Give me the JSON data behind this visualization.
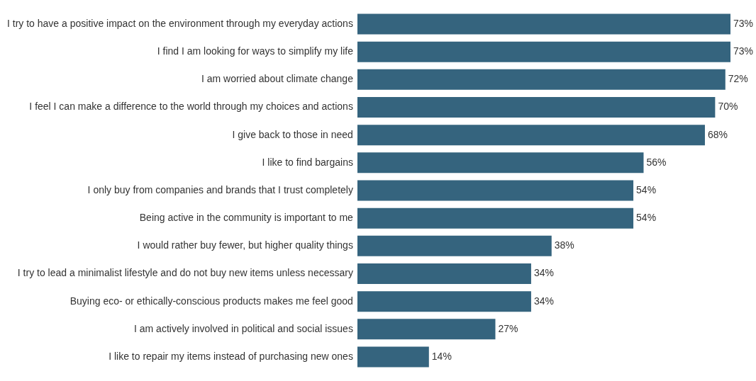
{
  "chart_data": {
    "type": "bar",
    "orientation": "horizontal",
    "categories": [
      "I try to have a positive impact on the environment through my everyday actions",
      "I find I am looking for ways to simplify my life",
      "I am worried about climate change",
      "I feel I can make a difference to the world through my choices and actions",
      "I give back to those in need",
      "I like to find bargains",
      "I only buy from companies and brands that I trust completely",
      "Being active in the community is important to me",
      "I would rather buy fewer, but higher quality things",
      "I try to lead a minimalist lifestyle and do not buy new items unless necessary",
      "Buying eco- or ethically-conscious products makes me feel good",
      "I am actively involved in political and social issues",
      "I like to repair my items instead of purchasing new ones"
    ],
    "values": [
      73,
      73,
      72,
      70,
      68,
      56,
      54,
      54,
      38,
      34,
      34,
      27,
      14
    ],
    "value_labels": [
      "73%",
      "73%",
      "72%",
      "70%",
      "68%",
      "56%",
      "54%",
      "54%",
      "38%",
      "34%",
      "34%",
      "27%",
      "14%"
    ],
    "color": "#35647e",
    "grid": false,
    "legend": false,
    "tick_labels": "y"
  }
}
